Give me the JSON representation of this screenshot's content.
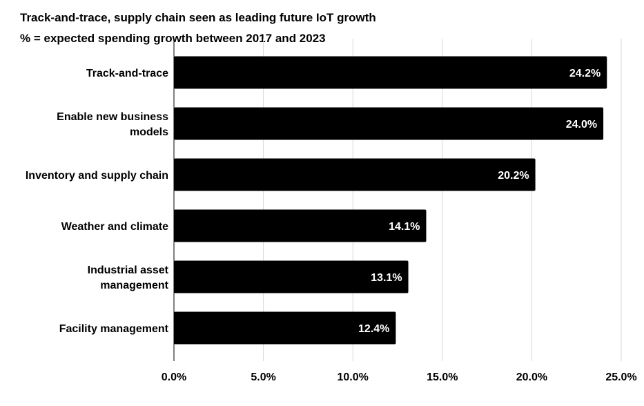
{
  "chart_data": {
    "type": "bar",
    "orientation": "horizontal",
    "title": "Track-and-trace, supply chain seen as leading future IoT growth",
    "subtitle": "% = expected spending growth between 2017 and 2023",
    "categories": [
      [
        "Track-and-trace"
      ],
      [
        "Enable new business",
        "models"
      ],
      [
        "Inventory and supply chain"
      ],
      [
        "Weather and climate"
      ],
      [
        "Industrial asset",
        "management"
      ],
      [
        "Facility management"
      ]
    ],
    "values": [
      24.2,
      24.0,
      20.2,
      14.1,
      13.1,
      12.4
    ],
    "data_labels": [
      "24.2%",
      "24.0%",
      "20.2%",
      "14.1%",
      "13.1%",
      "12.4%"
    ],
    "xlim": [
      0,
      25
    ],
    "x_ticks": [
      0,
      5,
      10,
      15,
      20,
      25
    ],
    "x_tick_labels": [
      "0.0%",
      "5.0%",
      "10.0%",
      "15.0%",
      "20.0%",
      "25.0%"
    ],
    "grid": "vertical",
    "bar_color": "#000000",
    "label_color": "#ffffff",
    "grid_color": "#d9d9d9"
  }
}
